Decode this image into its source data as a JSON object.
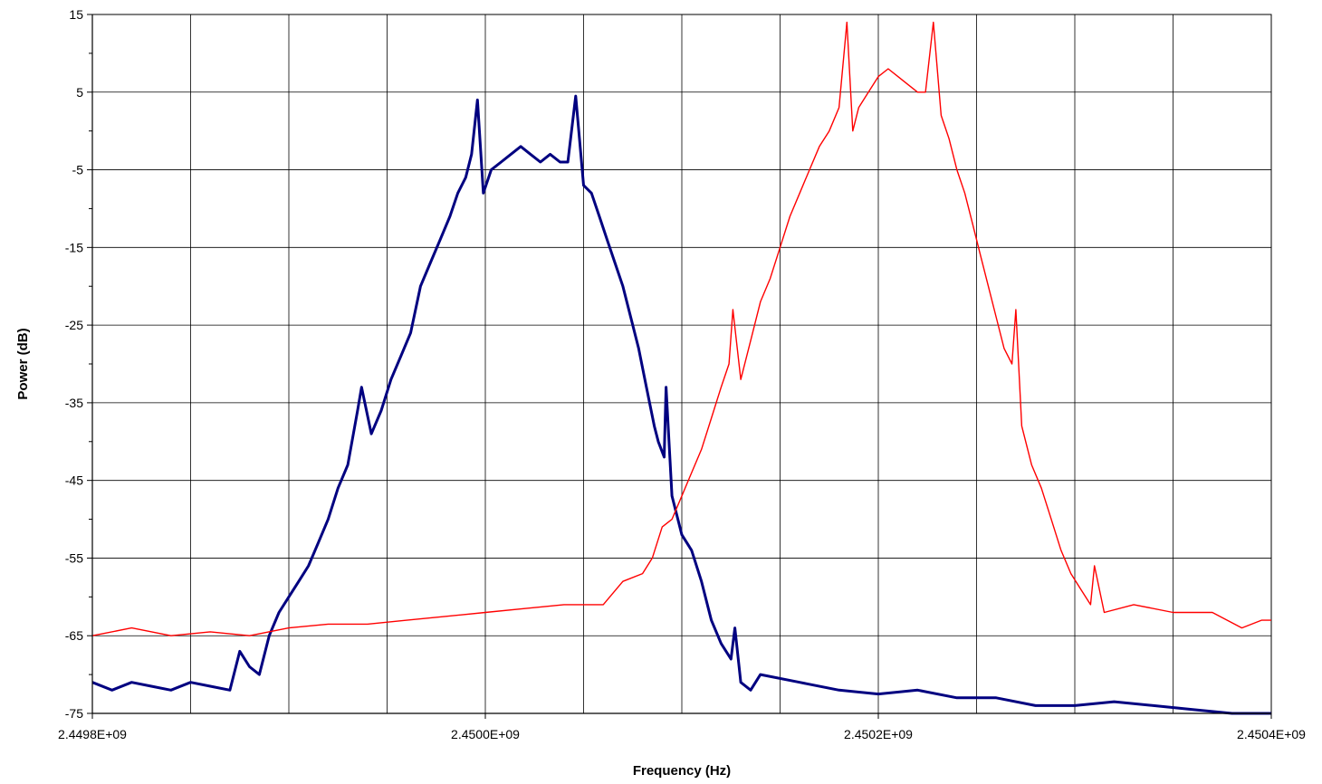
{
  "chart_data": {
    "type": "line",
    "title": "",
    "xlabel": "Frequency (Hz)",
    "ylabel": "Power (dB)",
    "xlim": [
      2449800000,
      2450400000
    ],
    "ylim": [
      -75,
      15
    ],
    "x_ticks": [
      2449800000,
      2450000000,
      2450200000,
      2450400000
    ],
    "x_tick_labels": [
      "2.4498E+09",
      "2.4500E+09",
      "2.4502E+09",
      "2.4504E+09"
    ],
    "y_ticks": [
      -75,
      -65,
      -55,
      -45,
      -35,
      -25,
      -15,
      -5,
      5,
      15
    ],
    "y_tick_labels": [
      "-75",
      "-65",
      "-55",
      "-45",
      "-35",
      "-25",
      "-15",
      "-5",
      "5",
      "15"
    ],
    "grid": true,
    "legend": "none",
    "series": [
      {
        "color": "#000080",
        "line_width": "thick",
        "points": [
          [
            2449800000,
            -71
          ],
          [
            2449810000,
            -72
          ],
          [
            2449820000,
            -71
          ],
          [
            2449830000,
            -71.5
          ],
          [
            2449840000,
            -72
          ],
          [
            2449850000,
            -71
          ],
          [
            2449860000,
            -71.5
          ],
          [
            2449870000,
            -72
          ],
          [
            2449875000,
            -67
          ],
          [
            2449880000,
            -69
          ],
          [
            2449885000,
            -70
          ],
          [
            2449890000,
            -65
          ],
          [
            2449895000,
            -62
          ],
          [
            2449900000,
            -60
          ],
          [
            2449905000,
            -58
          ],
          [
            2449910000,
            -56
          ],
          [
            2449915000,
            -53
          ],
          [
            2449920000,
            -50
          ],
          [
            2449925000,
            -46
          ],
          [
            2449930000,
            -43
          ],
          [
            2449935000,
            -36
          ],
          [
            2449937000,
            -33
          ],
          [
            2449942000,
            -39
          ],
          [
            2449947000,
            -36
          ],
          [
            2449952000,
            -32
          ],
          [
            2449957000,
            -29
          ],
          [
            2449962000,
            -26
          ],
          [
            2449967000,
            -20
          ],
          [
            2449972000,
            -17
          ],
          [
            2449977000,
            -14
          ],
          [
            2449982000,
            -11
          ],
          [
            2449986000,
            -8
          ],
          [
            2449990000,
            -6
          ],
          [
            2449993000,
            -3
          ],
          [
            2449996000,
            4
          ],
          [
            2449999000,
            -8
          ],
          [
            2450003000,
            -5
          ],
          [
            2450008000,
            -4
          ],
          [
            2450013000,
            -3
          ],
          [
            2450018000,
            -2
          ],
          [
            2450023000,
            -3
          ],
          [
            2450028000,
            -4
          ],
          [
            2450033000,
            -3
          ],
          [
            2450038000,
            -4
          ],
          [
            2450042000,
            -4
          ],
          [
            2450046000,
            4.5
          ],
          [
            2450050000,
            -7
          ],
          [
            2450054000,
            -8
          ],
          [
            2450058000,
            -11
          ],
          [
            2450062000,
            -14
          ],
          [
            2450066000,
            -17
          ],
          [
            2450070000,
            -20
          ],
          [
            2450074000,
            -24
          ],
          [
            2450078000,
            -28
          ],
          [
            2450082000,
            -33
          ],
          [
            2450086000,
            -38
          ],
          [
            2450088000,
            -40
          ],
          [
            2450091000,
            -42
          ],
          [
            2450092000,
            -33
          ],
          [
            2450095000,
            -47
          ],
          [
            2450100000,
            -52
          ],
          [
            2450105000,
            -54
          ],
          [
            2450110000,
            -58
          ],
          [
            2450115000,
            -63
          ],
          [
            2450120000,
            -66
          ],
          [
            2450125000,
            -68
          ],
          [
            2450127000,
            -64
          ],
          [
            2450130000,
            -71
          ],
          [
            2450135000,
            -72
          ],
          [
            2450140000,
            -70
          ],
          [
            2450160000,
            -71
          ],
          [
            2450180000,
            -72
          ],
          [
            2450200000,
            -72.5
          ],
          [
            2450220000,
            -72
          ],
          [
            2450240000,
            -73
          ],
          [
            2450260000,
            -73
          ],
          [
            2450280000,
            -74
          ],
          [
            2450300000,
            -74
          ],
          [
            2450320000,
            -73.5
          ],
          [
            2450340000,
            -74
          ],
          [
            2450360000,
            -74.5
          ],
          [
            2450380000,
            -75
          ],
          [
            2450400000,
            -75
          ]
        ]
      },
      {
        "color": "#ff0000",
        "line_width": "thin",
        "points": [
          [
            2449800000,
            -65
          ],
          [
            2449820000,
            -64
          ],
          [
            2449840000,
            -65
          ],
          [
            2449860000,
            -64.5
          ],
          [
            2449880000,
            -65
          ],
          [
            2449900000,
            -64
          ],
          [
            2449920000,
            -63.5
          ],
          [
            2449940000,
            -63.5
          ],
          [
            2449960000,
            -63
          ],
          [
            2449980000,
            -62.5
          ],
          [
            2450000000,
            -62
          ],
          [
            2450020000,
            -61.5
          ],
          [
            2450040000,
            -61
          ],
          [
            2450060000,
            -61
          ],
          [
            2450070000,
            -58
          ],
          [
            2450080000,
            -57
          ],
          [
            2450085000,
            -55
          ],
          [
            2450090000,
            -51
          ],
          [
            2450095000,
            -50
          ],
          [
            2450100000,
            -47
          ],
          [
            2450105000,
            -44
          ],
          [
            2450110000,
            -41
          ],
          [
            2450115000,
            -37
          ],
          [
            2450120000,
            -33
          ],
          [
            2450124000,
            -30
          ],
          [
            2450126000,
            -23
          ],
          [
            2450130000,
            -32
          ],
          [
            2450135000,
            -27
          ],
          [
            2450140000,
            -22
          ],
          [
            2450145000,
            -19
          ],
          [
            2450150000,
            -15
          ],
          [
            2450155000,
            -11
          ],
          [
            2450160000,
            -8
          ],
          [
            2450165000,
            -5
          ],
          [
            2450170000,
            -2
          ],
          [
            2450175000,
            0
          ],
          [
            2450180000,
            3
          ],
          [
            2450184000,
            14
          ],
          [
            2450187000,
            0
          ],
          [
            2450190000,
            3
          ],
          [
            2450195000,
            5
          ],
          [
            2450200000,
            7
          ],
          [
            2450205000,
            8
          ],
          [
            2450210000,
            7
          ],
          [
            2450215000,
            6
          ],
          [
            2450220000,
            5
          ],
          [
            2450224000,
            5
          ],
          [
            2450228000,
            14
          ],
          [
            2450232000,
            2
          ],
          [
            2450236000,
            -1
          ],
          [
            2450240000,
            -5
          ],
          [
            2450244000,
            -8
          ],
          [
            2450248000,
            -12
          ],
          [
            2450252000,
            -16
          ],
          [
            2450256000,
            -20
          ],
          [
            2450260000,
            -24
          ],
          [
            2450264000,
            -28
          ],
          [
            2450268000,
            -30
          ],
          [
            2450270000,
            -23
          ],
          [
            2450273000,
            -38
          ],
          [
            2450278000,
            -43
          ],
          [
            2450283000,
            -46
          ],
          [
            2450288000,
            -50
          ],
          [
            2450293000,
            -54
          ],
          [
            2450298000,
            -57
          ],
          [
            2450303000,
            -59
          ],
          [
            2450308000,
            -61
          ],
          [
            2450310000,
            -56
          ],
          [
            2450315000,
            -62
          ],
          [
            2450330000,
            -61
          ],
          [
            2450350000,
            -62
          ],
          [
            2450370000,
            -62
          ],
          [
            2450385000,
            -64
          ],
          [
            2450395000,
            -63
          ],
          [
            2450400000,
            -63
          ]
        ]
      }
    ]
  }
}
